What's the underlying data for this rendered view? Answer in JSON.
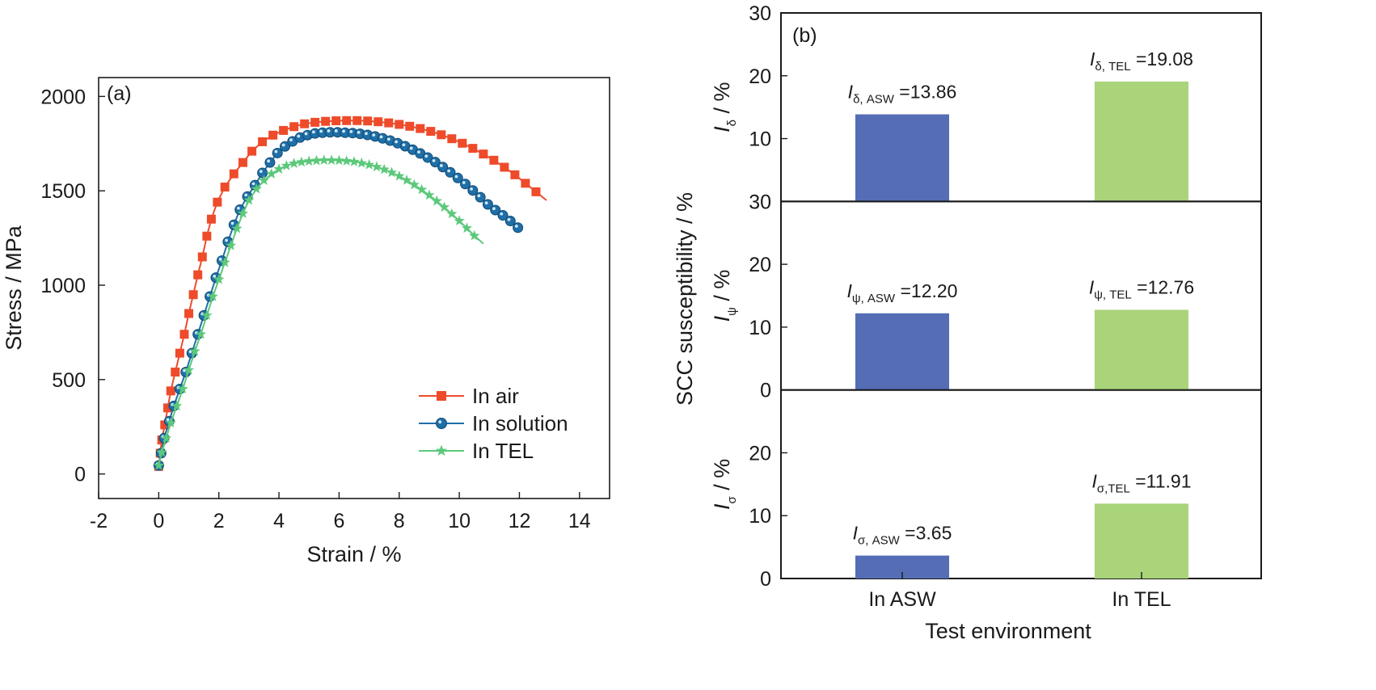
{
  "chart_data": [
    {
      "type": "line",
      "panel_label": "(a)",
      "xlabel": "Strain / %",
      "ylabel": "Stress / MPa",
      "xlim": [
        -2,
        15
      ],
      "ylim": [
        -130,
        2100
      ],
      "xticks": [
        -2,
        0,
        2,
        4,
        6,
        8,
        10,
        12,
        14
      ],
      "yticks": [
        0,
        500,
        1000,
        1500,
        2000
      ],
      "grid": false,
      "legend_position": "bottom-right",
      "series": [
        {
          "name": "In air",
          "color": "#ee4b2b",
          "marker": "square",
          "points": [
            [
              0,
              40
            ],
            [
              0.05,
              110
            ],
            [
              0.1,
              180
            ],
            [
              0.2,
              260
            ],
            [
              0.3,
              350
            ],
            [
              0.4,
              440
            ],
            [
              0.55,
              540
            ],
            [
              0.7,
              640
            ],
            [
              0.85,
              740
            ],
            [
              1.0,
              850
            ],
            [
              1.15,
              950
            ],
            [
              1.3,
              1055
            ],
            [
              1.45,
              1150
            ],
            [
              1.6,
              1260
            ],
            [
              1.75,
              1350
            ],
            [
              1.95,
              1440
            ],
            [
              2.2,
              1520
            ],
            [
              2.5,
              1590
            ],
            [
              2.8,
              1650
            ],
            [
              3.1,
              1710
            ],
            [
              3.45,
              1760
            ],
            [
              3.8,
              1795
            ],
            [
              4.15,
              1820
            ],
            [
              4.5,
              1840
            ],
            [
              4.85,
              1855
            ],
            [
              5.2,
              1863
            ],
            [
              5.55,
              1868
            ],
            [
              5.9,
              1871
            ],
            [
              6.25,
              1872
            ],
            [
              6.6,
              1872
            ],
            [
              6.95,
              1870
            ],
            [
              7.3,
              1866
            ],
            [
              7.65,
              1860
            ],
            [
              8.0,
              1852
            ],
            [
              8.35,
              1842
            ],
            [
              8.7,
              1830
            ],
            [
              9.05,
              1815
            ],
            [
              9.4,
              1797
            ],
            [
              9.75,
              1776
            ],
            [
              10.1,
              1752
            ],
            [
              10.45,
              1725
            ],
            [
              10.8,
              1695
            ],
            [
              11.15,
              1662
            ],
            [
              11.5,
              1625
            ],
            [
              11.85,
              1585
            ],
            [
              12.2,
              1540
            ],
            [
              12.55,
              1495
            ],
            [
              12.9,
              1450
            ]
          ]
        },
        {
          "name": "In solution",
          "color": "#1f6fa8",
          "marker": "circle",
          "points": [
            [
              0,
              45
            ],
            [
              0.08,
              110
            ],
            [
              0.18,
              190
            ],
            [
              0.35,
              280
            ],
            [
              0.5,
              360
            ],
            [
              0.7,
              450
            ],
            [
              0.9,
              540
            ],
            [
              1.1,
              640
            ],
            [
              1.3,
              740
            ],
            [
              1.5,
              840
            ],
            [
              1.7,
              940
            ],
            [
              1.9,
              1040
            ],
            [
              2.1,
              1130
            ],
            [
              2.3,
              1230
            ],
            [
              2.5,
              1320
            ],
            [
              2.7,
              1400
            ],
            [
              2.95,
              1470
            ],
            [
              3.2,
              1530
            ],
            [
              3.45,
              1595
            ],
            [
              3.7,
              1650
            ],
            [
              3.95,
              1700
            ],
            [
              4.2,
              1735
            ],
            [
              4.45,
              1762
            ],
            [
              4.7,
              1782
            ],
            [
              4.95,
              1795
            ],
            [
              5.2,
              1804
            ],
            [
              5.45,
              1808
            ],
            [
              5.7,
              1810
            ],
            [
              5.95,
              1810
            ],
            [
              6.2,
              1808
            ],
            [
              6.45,
              1806
            ],
            [
              6.7,
              1802
            ],
            [
              6.95,
              1796
            ],
            [
              7.2,
              1788
            ],
            [
              7.45,
              1778
            ],
            [
              7.7,
              1766
            ],
            [
              7.95,
              1752
            ],
            [
              8.2,
              1736
            ],
            [
              8.45,
              1718
            ],
            [
              8.7,
              1698
            ],
            [
              8.95,
              1676
            ],
            [
              9.2,
              1652
            ],
            [
              9.45,
              1626
            ],
            [
              9.7,
              1598
            ],
            [
              9.95,
              1568
            ],
            [
              10.2,
              1536
            ],
            [
              10.45,
              1502
            ],
            [
              10.7,
              1466
            ],
            [
              10.95,
              1428
            ],
            [
              11.2,
              1398
            ],
            [
              11.45,
              1370
            ],
            [
              11.7,
              1340
            ],
            [
              11.95,
              1305
            ],
            [
              12.1,
              1290
            ]
          ]
        },
        {
          "name": "In TEL",
          "color": "#5cc97a",
          "marker": "star",
          "points": [
            [
              0,
              45
            ],
            [
              0.1,
              115
            ],
            [
              0.25,
              190
            ],
            [
              0.4,
              270
            ],
            [
              0.6,
              360
            ],
            [
              0.8,
              450
            ],
            [
              1.0,
              550
            ],
            [
              1.2,
              650
            ],
            [
              1.4,
              740
            ],
            [
              1.6,
              840
            ],
            [
              1.8,
              940
            ],
            [
              2.0,
              1030
            ],
            [
              2.2,
              1120
            ],
            [
              2.4,
              1210
            ],
            [
              2.6,
              1300
            ],
            [
              2.8,
              1380
            ],
            [
              3.0,
              1450
            ],
            [
              3.25,
              1510
            ],
            [
              3.5,
              1555
            ],
            [
              3.75,
              1590
            ],
            [
              4.0,
              1615
            ],
            [
              4.25,
              1633
            ],
            [
              4.5,
              1645
            ],
            [
              4.75,
              1652
            ],
            [
              5.0,
              1657
            ],
            [
              5.25,
              1660
            ],
            [
              5.5,
              1662
            ],
            [
              5.75,
              1662
            ],
            [
              6.0,
              1661
            ],
            [
              6.25,
              1658
            ],
            [
              6.5,
              1654
            ],
            [
              6.75,
              1647
            ],
            [
              7.0,
              1638
            ],
            [
              7.25,
              1627
            ],
            [
              7.5,
              1613
            ],
            [
              7.75,
              1597
            ],
            [
              8.0,
              1578
            ],
            [
              8.25,
              1556
            ],
            [
              8.5,
              1532
            ],
            [
              8.75,
              1506
            ],
            [
              9.0,
              1477
            ],
            [
              9.25,
              1446
            ],
            [
              9.5,
              1413
            ],
            [
              9.75,
              1378
            ],
            [
              10.0,
              1341
            ],
            [
              10.25,
              1302
            ],
            [
              10.5,
              1262
            ],
            [
              10.8,
              1220
            ]
          ]
        }
      ]
    },
    {
      "type": "bar",
      "panel_label": "(b)",
      "categories": [
        "In ASW",
        "In TEL"
      ],
      "xlabel": "Test environment",
      "ylabel": "SCC susceptibility / %",
      "grid": false,
      "series_colors": [
        "#546db5",
        "#a9d47a"
      ],
      "subplots": [
        {
          "ylabel_main": "I",
          "ylabel_sub": "δ",
          "ylabel_rest": " / %",
          "ylim": [
            0,
            30
          ],
          "yticks": [
            10,
            20,
            30
          ],
          "values": [
            13.86,
            19.08
          ],
          "labels": [
            {
              "main": "I",
              "sub": "δ, ASW",
              "rest": " =13.86"
            },
            {
              "main": "I",
              "sub": "δ, TEL",
              "rest": " =19.08"
            }
          ]
        },
        {
          "ylabel_main": "I",
          "ylabel_sub": "ψ",
          "ylabel_rest": " / %",
          "ylim": [
            0,
            30
          ],
          "yticks": [
            0,
            10,
            20,
            30
          ],
          "values": [
            12.2,
            12.76
          ],
          "labels": [
            {
              "main": "I",
              "sub": "ψ, ASW",
              "rest": " =12.20"
            },
            {
              "main": "I",
              "sub": "ψ, TEL",
              "rest": " =12.76"
            }
          ]
        },
        {
          "ylabel_main": "I",
          "ylabel_sub": "σ",
          "ylabel_rest": " / %",
          "ylim": [
            0,
            30
          ],
          "yticks": [
            0,
            10,
            20
          ],
          "values": [
            3.65,
            11.91
          ],
          "labels": [
            {
              "main": "I",
              "sub": "σ, ASW",
              "rest": " =3.65"
            },
            {
              "main": "I",
              "sub": "σ,TEL",
              "rest": " =11.91"
            }
          ]
        }
      ]
    }
  ]
}
